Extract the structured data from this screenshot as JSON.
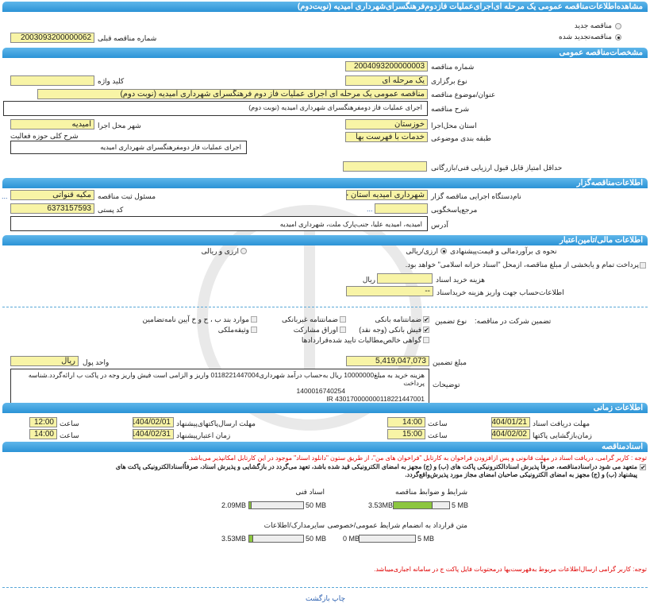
{
  "title": "مشاهده‌اطلاعات‌مناقصه عمومی یک مرحله ای‌اجرای‌عملیات فازدوم‌فرهنگسرای‌شهرداری امیدیه (نوبت‌دوم)",
  "tender_type": {
    "new_label": "مناقصه جدید",
    "renewed_label": "مناقصه‌تجدید شده",
    "selected": "renewed"
  },
  "previous": {
    "label": "شماره مناقصه قبلی",
    "value": "2003093200000062"
  },
  "general": {
    "header": "مشخصات‌مناقصه عمومی",
    "number_label": "شماره مناقصه",
    "number": "2004093200000003",
    "holding_label": "نوع برگزاری",
    "holding": "یک مرحله ای",
    "keyword_label": "کلید واژه",
    "keyword": "",
    "subject_label": "عنوان/موضوع مناقصه",
    "subject": "مناقصه عمومی یک مرحله ای اجرای عملیات فاز دوم فرهنگسرای شهرداری امیدیه (نوبت دوم)",
    "desc_label": "شرح مناقصه",
    "desc": "اجرای عملیات فاز دومفرهنگسرای شهرداری امیدیه (نوبت دوم)",
    "province_label": "استان محل‌اجرا",
    "province": "خوزستان",
    "city_label": "شهر محل اجرا",
    "city": "امیدیه",
    "scope_label": "شرح کلی حوزه فعالیت",
    "scope": "اجرای عملیات فاز دومفرهنگسرای شهرداری امیدیه",
    "category_label": "طبقه بندی موضوعی",
    "category": "خدمات با فهرست بها",
    "min_score_label": "حداقل امتیاز قابل قبول ارزیابی فنی/بازرگانی",
    "min_score": ""
  },
  "organizer": {
    "header": "اطلاعات‌مناقصه‌گزار",
    "org_label": "نام‌دستگاه اجرایی مناقصه گزار",
    "org": "شهرداری امیدیه استان خوز",
    "resp_label": "مسئول ثبت مناقصه",
    "resp": "مکیه قنواتی",
    "more": "...",
    "ref_label": "مرجع‌پاسخگویی",
    "ref": "",
    "postal_label": "کد پستی",
    "postal": "6373157593",
    "address_label": "آدرس",
    "address": "امیدیه، امیدیه علیا، جنب‌پارک ملت، شهرداری امیدیه"
  },
  "finance": {
    "header": "اطلاعات مالی/تامین‌اعتبار",
    "estimate_label": "نحوه ی برآوردمالی و قیمت‌پیشنهادی",
    "opt1": "ارزی/ریالی",
    "opt2": "ارزی و ریالی",
    "selected": "opt1",
    "treasury_text": "پرداخت تمام و یا‌بخشی  از مبلغ مناقصه، از‌محل \"اسناد خزانه اسلامی\" خواهد بود.",
    "treasury_checked": false,
    "doc_cost_label": "هزینه خرید اسناد",
    "doc_cost": "",
    "rial": "ریال",
    "account_label": "اطلاعات‌حساب جهت واریز هزینه خریداسناد",
    "account": "--",
    "guarantee_label": "تضمین شرکت در مناقصه:",
    "guarantee_type_label": "نوع تضمین",
    "guarantees": [
      {
        "label": "ضمانتنامه بانکی",
        "checked": true
      },
      {
        "label": "ضمانتنامه غیربانکی",
        "checked": false
      },
      {
        "label": "موارد بند ب ، ح و خ آیین نامه‌تضامین",
        "checked": false
      },
      {
        "label": "فیش بانکی (وجه نقد)",
        "checked": true
      },
      {
        "label": "اوراق مشارکت",
        "checked": false
      },
      {
        "label": "وثیقه‌ملکی",
        "checked": false
      },
      {
        "label": "گواهی خالص‌مطالبات تایید شده‌قراردادها",
        "checked": false
      }
    ],
    "amount_label": "مبلغ تضمین",
    "amount": "5,419,047,073",
    "currency_label": "واحد پول",
    "currency": "ریال",
    "notes_label": "توضیحات",
    "notes_line1": "هزینه خرید به  مبلغ10000000 ریال به‌حساب درآمد شهرداری0118221447004 واریز و الزامی است فیش واریز وجه در پاکت ب ارائه‌گردد.شناسه پرداخت",
    "notes_line2": "1400016740254",
    "notes_line3": "IR 430170000000118221447001"
  },
  "timing": {
    "header": "اطلاعات زمانی",
    "receive_label": "مهلت دریافت اسناد",
    "receive_date": "1404/01/21",
    "receive_time": "14:00",
    "submit_label": "مهلت ارسال‌پاکتهای‌پیشنهاد",
    "submit_date": "1404/02/01",
    "submit_time": "12:00",
    "open_label": "زمان‌بازگشایی پاکتها",
    "open_date": "1404/02/02",
    "open_time": "15:00",
    "validity_label": "زمان اعتبارپیشنهاد",
    "validity_date": "1404/02/31",
    "validity_time": "14:00",
    "time_label": "ساعت"
  },
  "docs": {
    "header": "اسنادمناقصه",
    "note1": "توجه : کاربر گرامی، دریافت اسناد در مهلت قانونی و پس ازافزودن فراخوان به کارتابل \"فراخوان های من\"، از طریق ستون \"دانلود اسناد\" موجود در این کارتابل امکانپذیر می‌باشد.",
    "commit_line1": "متعهد می شود دراسنادمناقصه، صرفاً پذیرش اسنادالکترونیکی پاکت های (ب) و (ج) مجهز به امضای الکترونیکی قید شده باشد، تعهد می‌گردد در بازگشایی و پذیرش اسناد، صرفاًاسنادالکترونیکی پاکت های",
    "commit_line2": "پیشنهاد (ب) و (ج) مجهز به امضای الکترونیکی صاحبان امضای مجاز مورد پذیرش‌واقع‌گردد.",
    "commit_checked": true,
    "files": [
      {
        "label": "شرایط و ضوابط مناقصه",
        "size": "3.53MB",
        "max": "5 MB",
        "fraction": 0.706
      },
      {
        "label": "اسناد فنی",
        "size": "2.09MB",
        "max": "50 MB",
        "fraction": 0.042
      },
      {
        "label": "متن قرارداد به انضمام شرایط عمومی/خصوصی",
        "size": "0 MB",
        "max": "5 MB",
        "fraction": 0
      },
      {
        "label": "سایرمدارک/اطلاعات",
        "size": "3.53MB",
        "max": "50 MB",
        "fraction": 0.071
      }
    ],
    "note2": "توجه: کاربر گرامی ارسال‌اطلاعات مربوط به‌فهرست‌بها  درمحتوبات فایل پاکت  ج  در سامانه اجباری‌میباشد."
  },
  "footer": {
    "print": "چاپ",
    "back": "بازگشت"
  },
  "colors": {
    "header": "#3a9fdc",
    "field": "#f8f4a6",
    "progress": "#8cc63f",
    "alert": "#e00000"
  }
}
